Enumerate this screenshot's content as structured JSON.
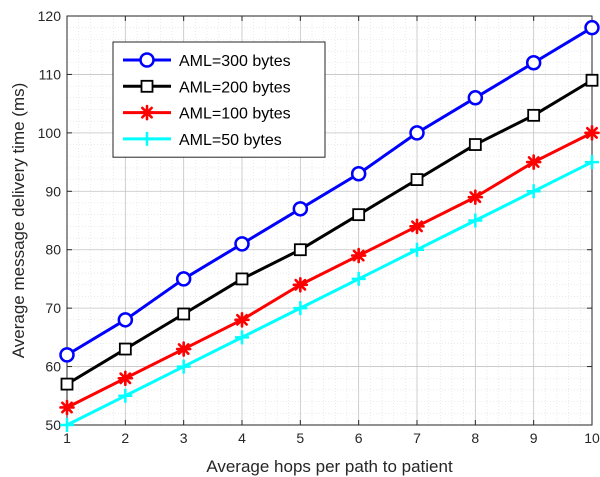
{
  "chart_data": {
    "type": "line",
    "title": "",
    "xlabel": "Average hops per path to patient",
    "ylabel": "Average message delivery time (ms)",
    "x": [
      1,
      2,
      3,
      4,
      5,
      6,
      7,
      8,
      9,
      10
    ],
    "xlim": [
      1,
      10
    ],
    "ylim": [
      50,
      120
    ],
    "xticks": [
      1,
      2,
      3,
      4,
      5,
      6,
      7,
      8,
      9,
      10
    ],
    "yticks": [
      50,
      60,
      70,
      80,
      90,
      100,
      110,
      120
    ],
    "grid": true,
    "minor_grid": true,
    "legend_position": "top-left",
    "series": [
      {
        "name": "AML=300 bytes",
        "color": "#0000ff",
        "marker": "circle",
        "values": [
          62,
          68,
          75,
          81,
          87,
          93,
          100,
          106,
          112,
          118
        ]
      },
      {
        "name": "AML=200 bytes",
        "color": "#000000",
        "marker": "square",
        "values": [
          57,
          63,
          69,
          75,
          80,
          86,
          92,
          98,
          103,
          109
        ]
      },
      {
        "name": "AML=100 bytes",
        "color": "#ff0000",
        "marker": "asterisk",
        "values": [
          53,
          58,
          63,
          68,
          74,
          79,
          84,
          89,
          95,
          100
        ]
      },
      {
        "name": "AML=50 bytes",
        "color": "#00ffff",
        "marker": "plus",
        "values": [
          50,
          55,
          60,
          65,
          70,
          75,
          80,
          85,
          90,
          95
        ]
      }
    ]
  }
}
